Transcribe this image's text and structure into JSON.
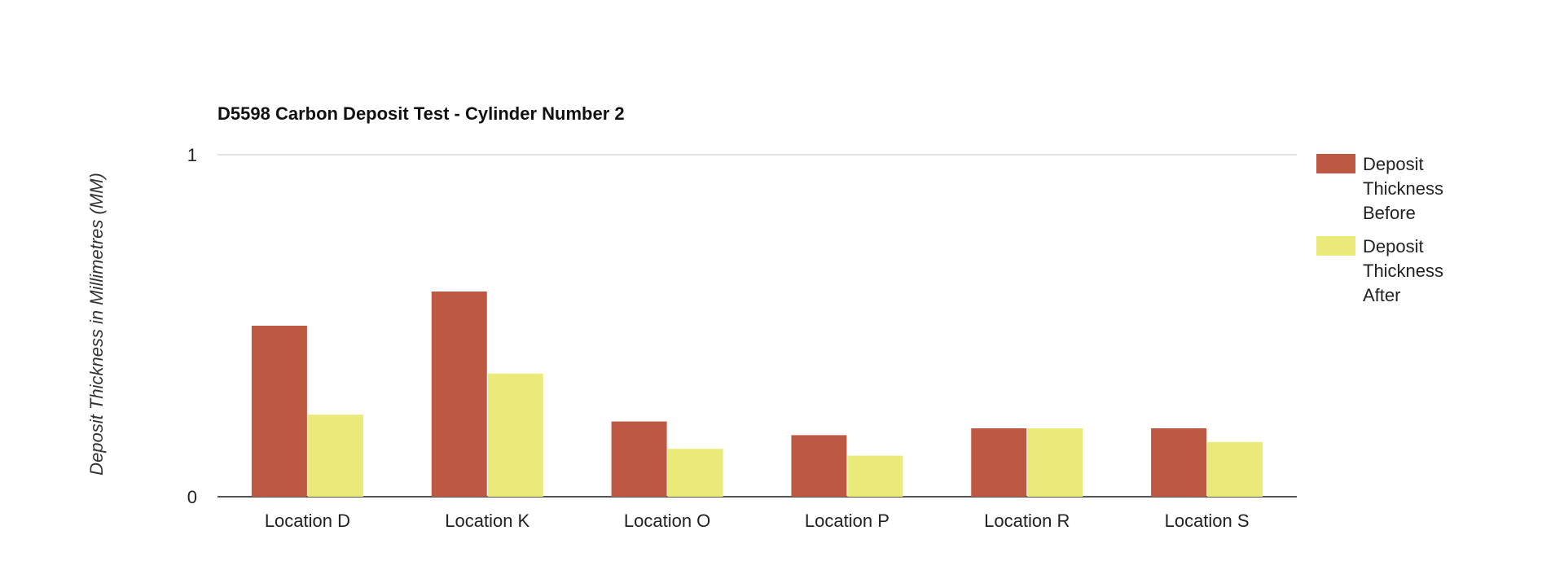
{
  "chart_data": {
    "type": "bar",
    "title": "D5598 Carbon Deposit Test - Cylinder Number 2",
    "xlabel": "",
    "ylabel": "Deposit Thickness in Millimetres (MM)",
    "ylim": [
      0,
      1
    ],
    "y_ticks": [
      "0",
      "1"
    ],
    "grid": true,
    "legend_position": "right",
    "categories": [
      "Location D",
      "Location K",
      "Location O",
      "Location P",
      "Location R",
      "Location S"
    ],
    "series": [
      {
        "name": "Deposit Thickness Before",
        "name_lines": [
          "Deposit",
          "Thickness",
          "Before"
        ],
        "color": "#BD5942",
        "values": [
          0.5,
          0.6,
          0.22,
          0.18,
          0.2,
          0.2
        ]
      },
      {
        "name": "Deposit Thickness After",
        "name_lines": [
          "Deposit",
          "Thickness",
          "After"
        ],
        "color": "#EAEA7A",
        "values": [
          0.24,
          0.36,
          0.14,
          0.12,
          0.2,
          0.16
        ]
      }
    ]
  }
}
